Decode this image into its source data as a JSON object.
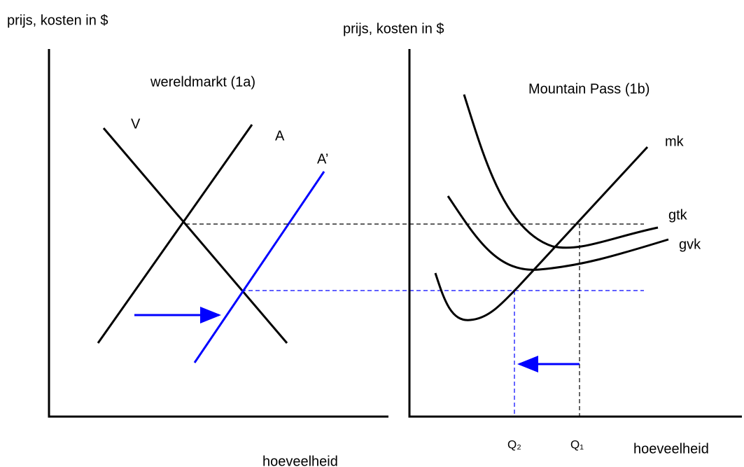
{
  "left_panel": {
    "y_axis_label": "prijs, kosten in $",
    "title": "wereldmarkt (1a)",
    "curves": [
      "V",
      "A",
      "A’"
    ],
    "x_axis_label": "hoeveelheid"
  },
  "right_panel": {
    "y_axis_label": "prijs, kosten in $",
    "title": "Mountain Pass (1b)",
    "curves": [
      "mk",
      "gtk",
      "gvk"
    ],
    "quantities": [
      "Q₂",
      "Q₁"
    ],
    "x_axis_label": "hoeveelheid"
  }
}
